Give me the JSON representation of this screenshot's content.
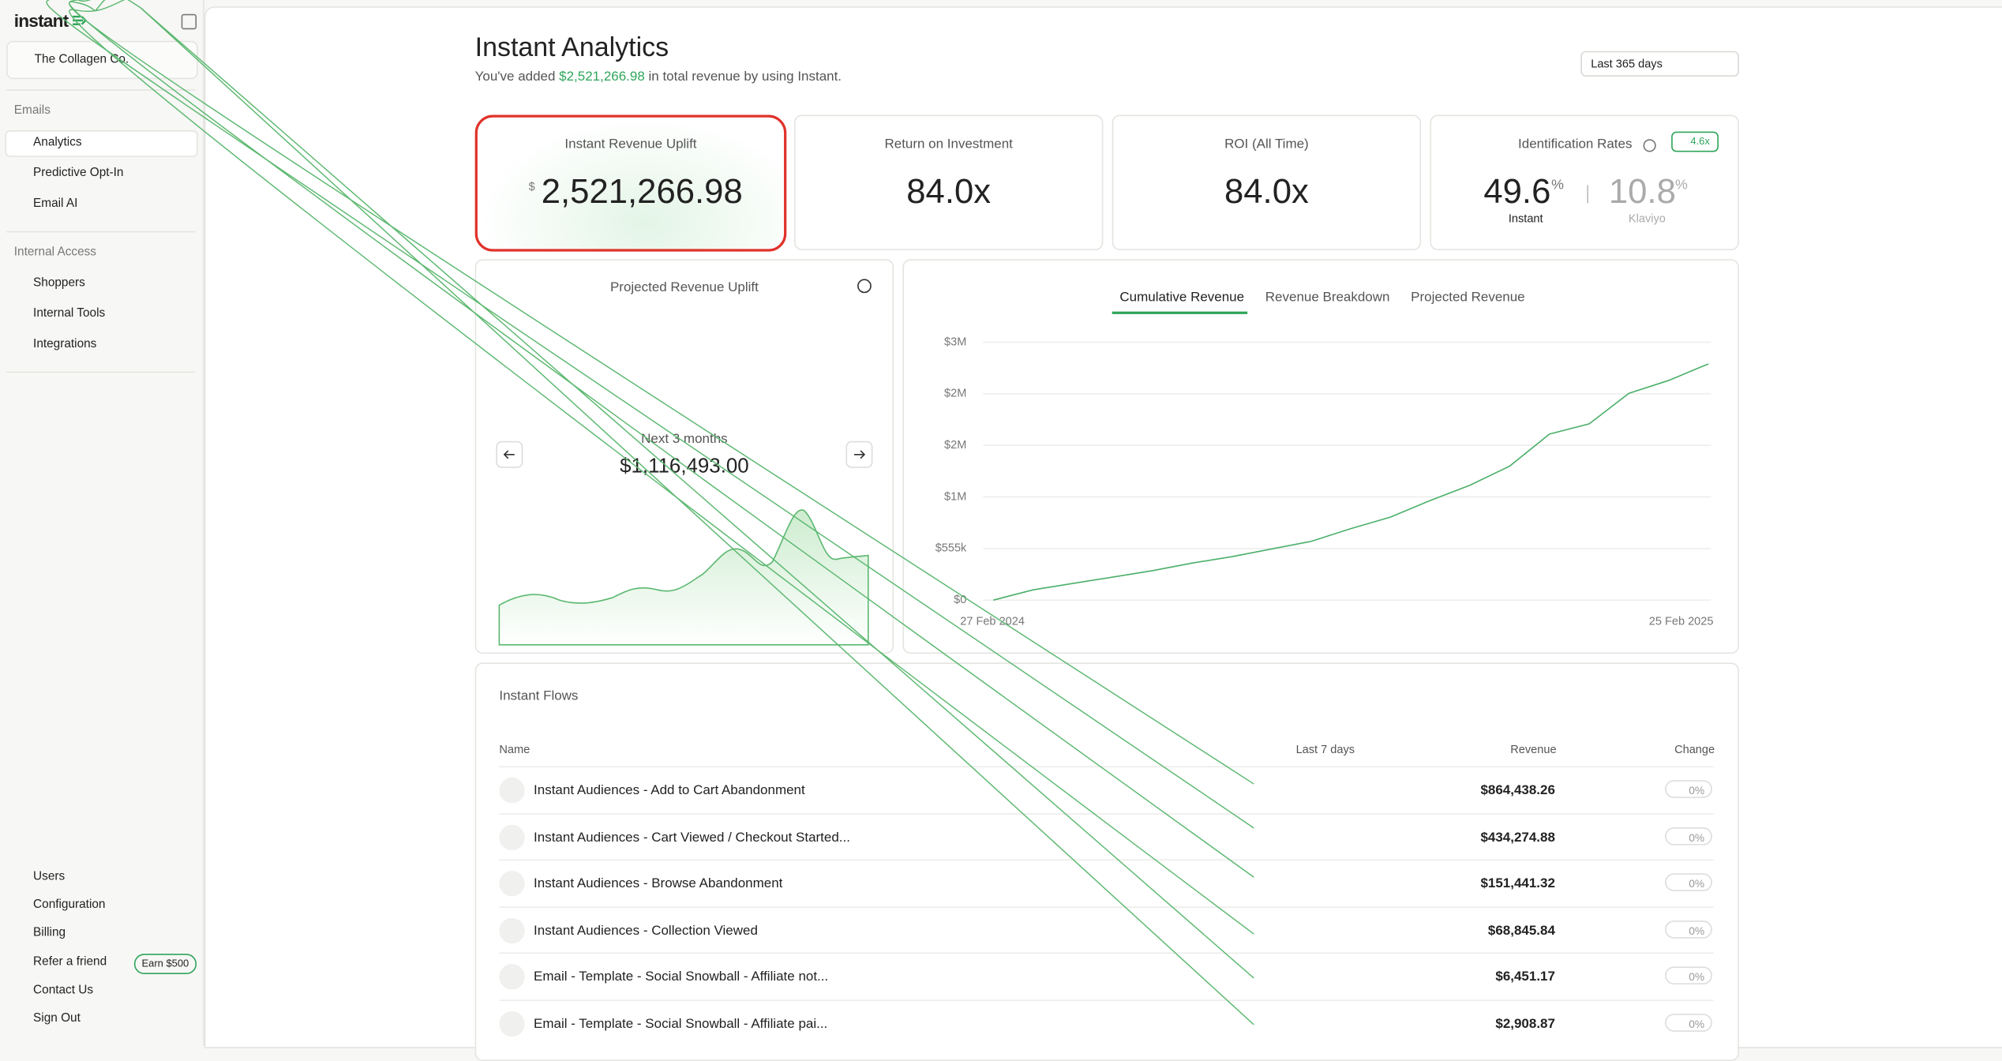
{
  "sidebar": {
    "brand": "instant",
    "workspace": "The Collagen Co.",
    "sections": [
      {
        "title": "Emails",
        "items": [
          "Analytics",
          "Predictive Opt-In",
          "Email AI"
        ]
      },
      {
        "title": "Internal Access",
        "items": [
          "Shoppers",
          "Internal Tools",
          "Integrations"
        ]
      }
    ],
    "footer_items": [
      "Users",
      "Configuration",
      "Billing",
      "Refer a friend",
      "Contact Us",
      "Sign Out"
    ],
    "referral_badge": "Earn $500"
  },
  "header": {
    "title": "Instant Analytics",
    "subtitle_prefix": "You've added",
    "subtitle_amount": "$2,521,266.98",
    "subtitle_suffix": "in total revenue by using Instant.",
    "date_range": "Last 365 days"
  },
  "metrics": [
    {
      "label": "Instant Revenue Uplift",
      "currency": "$",
      "value": "2,521,266.98"
    },
    {
      "label": "Return on Investment",
      "value": "84.0x"
    },
    {
      "label": "ROI (All Time)",
      "value": "84.0x"
    }
  ],
  "identification": {
    "label": "Identification Rates",
    "badge": "4.6x",
    "instant": {
      "value": "49.6",
      "unit": "%",
      "name": "Instant"
    },
    "klaviyo": {
      "value": "10.8",
      "unit": "%",
      "name": "Klaviyo"
    }
  },
  "projection": {
    "title": "Projected Revenue Uplift",
    "period": "Next 3 months",
    "amount": "$1,116,493.00"
  },
  "revenue_chart": {
    "tabs": [
      "Cumulative Revenue",
      "Revenue Breakdown",
      "Projected Revenue"
    ],
    "type": "line",
    "color": "#4caf6a",
    "ylim": [
      0,
      2775000
    ],
    "yticks": [
      {
        "value": 0,
        "label": "$0"
      },
      {
        "value": 555000,
        "label": "$555k"
      },
      {
        "value": 1110000,
        "label": "$1M"
      },
      {
        "value": 1665000,
        "label": "$2M"
      },
      {
        "value": 2220000,
        "label": "$2M"
      },
      {
        "value": 2775000,
        "label": "$3M"
      }
    ],
    "x_labels": [
      "27 Feb 2024",
      "25 Feb 2025"
    ],
    "values": [
      0,
      110000,
      179000,
      247000,
      316000,
      398000,
      467000,
      550000,
      632000,
      769000,
      893000,
      1072000,
      1236000,
      1442000,
      1786000,
      1896000,
      2225000,
      2363000,
      2541000
    ]
  },
  "flows": {
    "title": "Instant Flows",
    "columns": [
      "Name",
      "Last 7 days",
      "Revenue",
      "Change"
    ],
    "rows": [
      {
        "name": "Instant Audiences - Add to Cart Abandonment",
        "revenue": "$864,438.26",
        "change": "0%"
      },
      {
        "name": "Instant Audiences - Cart Viewed / Checkout Started...",
        "revenue": "$434,274.88",
        "change": "0%"
      },
      {
        "name": "Instant Audiences - Browse Abandonment",
        "revenue": "$151,441.32",
        "change": "0%"
      },
      {
        "name": "Instant Audiences - Collection Viewed",
        "revenue": "$68,845.84",
        "change": "0%"
      },
      {
        "name": "Email - Template - Social Snowball - Affiliate not...",
        "revenue": "$6,451.17",
        "change": "0%"
      },
      {
        "name": "Email - Template - Social Snowball - Affiliate pai...",
        "revenue": "$2,908.87",
        "change": "0%"
      }
    ]
  }
}
